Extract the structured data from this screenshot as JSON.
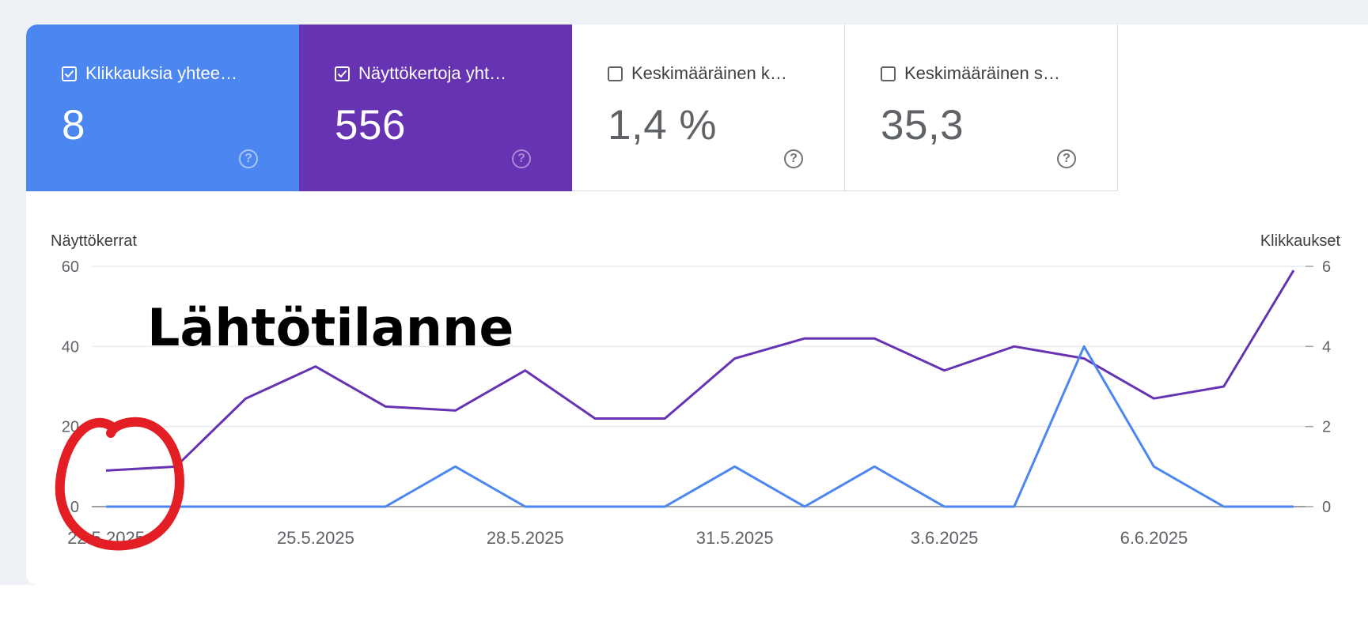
{
  "cards": [
    {
      "label": "Klikkauksia yhtee…",
      "value": "8",
      "checked": true
    },
    {
      "label": "Näyttökertoja yht…",
      "value": "556",
      "checked": true
    },
    {
      "label": "Keskimääräinen k…",
      "value": "1,4 %",
      "checked": false
    },
    {
      "label": "Keskimääräinen s…",
      "value": "35,3",
      "checked": false
    }
  ],
  "help_symbol": "?",
  "annotation": {
    "text": "Lähtötilanne"
  },
  "colors": {
    "clicks": "#4c86f0",
    "impressions": "#6633b3",
    "annotation_circle": "#e31e24"
  },
  "chart_data": {
    "type": "line",
    "x": [
      "22.5.2025",
      "23.5.2025",
      "24.5.2025",
      "25.5.2025",
      "26.5.2025",
      "27.5.2025",
      "28.5.2025",
      "29.5.2025",
      "30.5.2025",
      "31.5.2025",
      "1.6.2025",
      "2.6.2025",
      "3.6.2025",
      "4.6.2025",
      "5.6.2025",
      "6.6.2025",
      "7.6.2025",
      "8.6.2025"
    ],
    "x_tick_labels": [
      "22.5.2025",
      "25.5.2025",
      "28.5.2025",
      "31.5.2025",
      "3.6.2025",
      "6.6.2025"
    ],
    "x_tick_index": [
      0,
      3,
      6,
      9,
      12,
      15
    ],
    "series": [
      {
        "name": "Näyttökerrat",
        "axis": "left",
        "values": [
          9,
          10,
          27,
          35,
          25,
          24,
          34,
          22,
          22,
          37,
          42,
          42,
          34,
          40,
          37,
          27,
          30,
          59
        ]
      },
      {
        "name": "Klikkaukset",
        "axis": "right",
        "values": [
          0,
          0,
          0,
          0,
          0,
          1,
          0,
          0,
          0,
          1,
          0,
          1,
          0,
          0,
          4,
          1,
          0,
          0
        ]
      }
    ],
    "y_left": {
      "label": "Näyttökerrat",
      "ticks": [
        "0",
        "20",
        "40",
        "60"
      ],
      "lim": [
        0,
        60
      ]
    },
    "y_right": {
      "label": "Klikkaukset",
      "ticks": [
        "0",
        "2",
        "4",
        "6"
      ],
      "lim": [
        0,
        6
      ]
    },
    "grid": true
  }
}
